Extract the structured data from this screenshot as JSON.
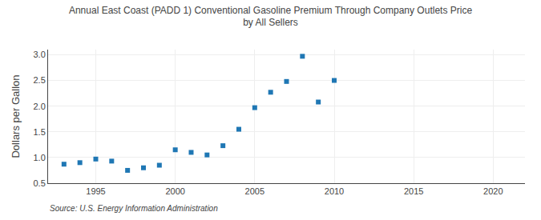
{
  "chart_data": {
    "type": "scatter",
    "title": "Annual East Coast (PADD 1) Conventional Gasoline Premium Through Company Outlets Price\nby All Sellers",
    "ylabel": "Dollars per Gallon",
    "annotations": [
      "Source: U.S. Energy Information Administration"
    ],
    "x": [
      1993,
      1994,
      1995,
      1996,
      1997,
      1998,
      1999,
      2000,
      2001,
      2002,
      2003,
      2004,
      2005,
      2006,
      2007,
      2008,
      2009,
      2010
    ],
    "values": [
      0.87,
      0.9,
      0.97,
      0.93,
      0.75,
      0.8,
      0.85,
      1.15,
      1.1,
      1.05,
      1.23,
      1.55,
      1.97,
      2.27,
      2.48,
      2.97,
      2.08,
      2.5
    ],
    "marker": "square",
    "xlim": [
      1992,
      2022
    ],
    "ylim": [
      0.5,
      3.1
    ],
    "xticks": [
      1995,
      2000,
      2005,
      2010,
      2015,
      2020
    ],
    "yticks": [
      0.5,
      {
        "value": 1.0,
        "label": "1.0"
      },
      1.5,
      {
        "value": 2.0,
        "label": "2.0"
      },
      2.5,
      {
        "value": 3.0,
        "label": "3.0"
      }
    ],
    "grid": true
  }
}
